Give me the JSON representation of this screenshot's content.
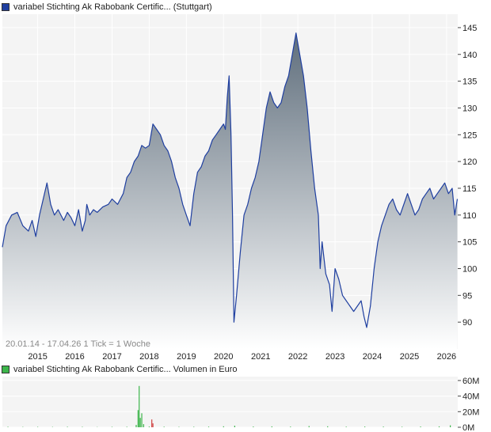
{
  "price_legend": {
    "label": "variabel Stichting Ak Rabobank Certific... (Stuttgart)",
    "color": "#1f3fa0"
  },
  "volume_legend": {
    "label": "variabel Stichting Ak Rabobank Certific... Volumen in Euro",
    "color": "#3cb54a"
  },
  "info_text": "20.01.14 - 17.04.26   1 Tick = 1 Woche",
  "colors": {
    "line": "#1f3fa0",
    "area_top": "#5f6e7c",
    "area_bottom": "#ffffff",
    "volume": "#3cb54a",
    "volume_alt": "#d04040",
    "panel": "#f4f4f4"
  },
  "chart_data": [
    {
      "type": "area",
      "name": "price",
      "xlim": [
        2014.05,
        2026.3
      ],
      "ylim": [
        85,
        147.5
      ],
      "x_ticks": [
        2015,
        2016,
        2017,
        2018,
        2019,
        2020,
        2021,
        2022,
        2023,
        2024,
        2025,
        2026
      ],
      "x_tick_labels": [
        "2015",
        "2016",
        "2017",
        "2018",
        "2019",
        "2020",
        "2021",
        "2022",
        "2023",
        "2024",
        "2025",
        "2026"
      ],
      "y_ticks": [
        90,
        95,
        100,
        105,
        110,
        115,
        120,
        125,
        130,
        135,
        140,
        145
      ],
      "y_tick_labels": [
        "90",
        "95",
        "100",
        "105",
        "110",
        "115",
        "120",
        "125",
        "130",
        "135",
        "140",
        "145"
      ],
      "grid": true,
      "series": [
        {
          "x": [
            2014.05,
            2014.15,
            2014.3,
            2014.45,
            2014.6,
            2014.75,
            2014.85,
            2014.95,
            2015.05,
            2015.15,
            2015.25,
            2015.35,
            2015.45,
            2015.55,
            2015.7,
            2015.8,
            2015.9,
            2016.0,
            2016.1,
            2016.2,
            2016.28,
            2016.32,
            2016.4,
            2016.5,
            2016.6,
            2016.75,
            2016.9,
            2017.0,
            2017.15,
            2017.3,
            2017.4,
            2017.5,
            2017.6,
            2017.7,
            2017.8,
            2017.9,
            2018.0,
            2018.1,
            2018.2,
            2018.3,
            2018.4,
            2018.5,
            2018.6,
            2018.7,
            2018.8,
            2018.9,
            2019.0,
            2019.1,
            2019.2,
            2019.3,
            2019.4,
            2019.5,
            2019.6,
            2019.7,
            2019.8,
            2019.9,
            2020.0,
            2020.05,
            2020.1,
            2020.15,
            2020.2,
            2020.24,
            2020.28,
            2020.35,
            2020.45,
            2020.55,
            2020.65,
            2020.75,
            2020.85,
            2020.95,
            2021.05,
            2021.15,
            2021.25,
            2021.35,
            2021.45,
            2021.55,
            2021.65,
            2021.75,
            2021.85,
            2021.95,
            2022.05,
            2022.15,
            2022.25,
            2022.35,
            2022.45,
            2022.55,
            2022.6,
            2022.65,
            2022.75,
            2022.85,
            2022.92,
            2023.0,
            2023.1,
            2023.2,
            2023.3,
            2023.4,
            2023.5,
            2023.6,
            2023.7,
            2023.78,
            2023.85,
            2023.95,
            2024.05,
            2024.15,
            2024.25,
            2024.35,
            2024.45,
            2024.55,
            2024.65,
            2024.75,
            2024.85,
            2024.95,
            2025.05,
            2025.15,
            2025.25,
            2025.35,
            2025.45,
            2025.55,
            2025.65,
            2025.75,
            2025.85,
            2025.95,
            2026.05,
            2026.15,
            2026.22,
            2026.29
          ],
          "y": [
            104,
            108,
            110,
            110.5,
            108,
            107,
            109,
            106,
            110,
            113,
            116,
            112,
            110,
            111,
            109,
            110.5,
            109.5,
            108,
            111,
            107,
            109,
            112,
            110,
            111,
            110.5,
            111.5,
            112,
            113,
            112,
            114,
            117,
            118,
            120,
            121,
            123,
            122.5,
            123,
            127,
            126,
            125,
            123,
            122,
            120,
            117,
            115,
            112,
            110,
            108,
            114,
            118,
            119,
            121,
            122,
            124,
            125,
            126,
            127,
            126,
            132,
            136,
            125,
            110,
            90,
            95,
            103,
            110,
            112,
            115,
            117,
            120,
            125,
            130,
            133,
            131,
            130,
            131,
            134,
            136,
            140,
            144,
            140,
            136,
            130,
            122,
            115,
            110,
            100,
            105,
            99,
            97,
            92,
            100,
            98,
            95,
            94,
            93,
            92,
            93,
            94,
            91,
            89,
            93,
            100,
            105,
            108,
            110,
            112,
            113,
            111,
            110,
            112,
            114,
            112,
            110,
            111,
            113,
            114,
            115,
            113,
            114,
            115,
            116,
            114,
            115,
            110,
            113
          ]
        }
      ]
    },
    {
      "type": "bar",
      "name": "volume",
      "xlim": [
        2014.05,
        2026.3
      ],
      "ylim": [
        0,
        65000000
      ],
      "y_ticks": [
        0,
        20000000,
        40000000,
        60000000
      ],
      "y_tick_labels": [
        "0M",
        "20M",
        "40M",
        "60M"
      ],
      "series": [
        {
          "name": "",
          "x": [
            2014.2,
            2014.6,
            2015.0,
            2015.4,
            2015.8,
            2016.2,
            2016.6,
            2017.0,
            2017.4,
            2017.65,
            2017.7,
            2017.73,
            2017.76,
            2017.8,
            2017.85,
            2018.0,
            2018.4,
            2018.8,
            2019.2,
            2019.6,
            2020.0,
            2020.3,
            2020.8,
            2021.3,
            2021.8,
            2022.3,
            2022.8,
            2023.3,
            2023.8,
            2024.3,
            2024.8,
            2025.3,
            2025.8,
            2026.1
          ],
          "values": [
            600000,
            400000,
            500000,
            400000,
            600000,
            500000,
            300000,
            500000,
            600000,
            3000000,
            22000000,
            53000000,
            12000000,
            18000000,
            4000000,
            900000,
            700000,
            500000,
            600000,
            800000,
            1200000,
            2000000,
            900000,
            1100000,
            800000,
            1500000,
            1200000,
            700000,
            900000,
            800000,
            600000,
            900000,
            1100000,
            2500000
          ]
        },
        {
          "name": "",
          "x": [
            2018.07,
            2018.1
          ],
          "values": [
            10000000,
            5000000
          ]
        }
      ]
    }
  ]
}
